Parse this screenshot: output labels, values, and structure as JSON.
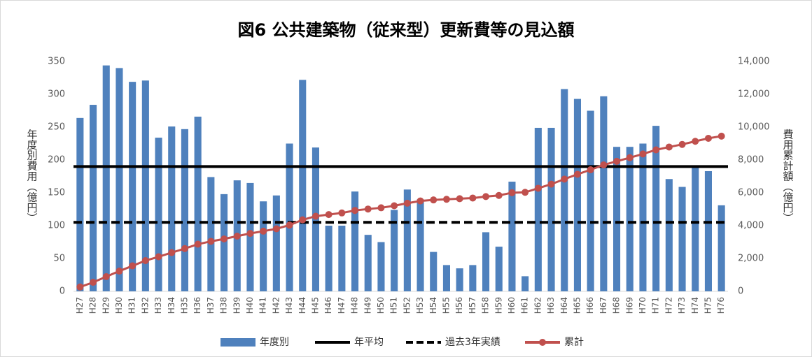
{
  "chart_data": {
    "type": "bar-line",
    "title": "図6 公共建築物（従来型）更新費等の見込額",
    "y_label": "年度別費用（億円）",
    "y2_label": "費用累計額（億円）",
    "categories": [
      "H27",
      "H28",
      "H29",
      "H30",
      "H31",
      "H32",
      "H33",
      "H34",
      "H35",
      "H36",
      "H37",
      "H38",
      "H39",
      "H40",
      "H41",
      "H42",
      "H43",
      "H44",
      "H45",
      "H46",
      "H47",
      "H48",
      "H49",
      "H50",
      "H51",
      "H52",
      "H53",
      "H54",
      "H55",
      "H56",
      "H57",
      "H58",
      "H59",
      "H60",
      "H61",
      "H62",
      "H63",
      "H64",
      "H65",
      "H66",
      "H67",
      "H68",
      "H69",
      "H70",
      "H71",
      "H72",
      "H73",
      "H74",
      "H75",
      "H76"
    ],
    "series": [
      {
        "name": "年度別",
        "kind": "bar",
        "color": "#4f81bd",
        "values": [
          264,
          284,
          344,
          340,
          319,
          321,
          234,
          251,
          247,
          266,
          174,
          148,
          169,
          165,
          137,
          146,
          225,
          322,
          219,
          100,
          100,
          152,
          86,
          75,
          124,
          155,
          140,
          60,
          40,
          35,
          40,
          90,
          68,
          167,
          23,
          249,
          249,
          308,
          293,
          275,
          297,
          220,
          220,
          225,
          252,
          171,
          159,
          190,
          183,
          131
        ]
      },
      {
        "name": "年平均",
        "kind": "hline",
        "color": "#000000",
        "dashed": false,
        "value": 190
      },
      {
        "name": "過去3年実績",
        "kind": "hline",
        "color": "#000000",
        "dashed": true,
        "value": 105
      },
      {
        "name": "累計",
        "kind": "line",
        "axis": "y2",
        "color": "#c0504d",
        "values": [
          264,
          548,
          892,
          1232,
          1551,
          1872,
          2106,
          2357,
          2604,
          2870,
          3044,
          3192,
          3361,
          3526,
          3663,
          3809,
          4034,
          4356,
          4575,
          4675,
          4775,
          4927,
          5013,
          5088,
          5212,
          5367,
          5507,
          5567,
          5607,
          5642,
          5682,
          5772,
          5840,
          6007,
          6030,
          6279,
          6528,
          6836,
          7129,
          7404,
          7701,
          7921,
          8141,
          8366,
          8618,
          8789,
          8948,
          9138,
          9321,
          9452
        ]
      }
    ],
    "ylim": [
      0,
      350
    ],
    "yticks": [
      0,
      50,
      100,
      150,
      200,
      250,
      300,
      350
    ],
    "y2lim": [
      0,
      14000
    ],
    "y2ticks": [
      0,
      {
        "value": 2000,
        "label": "2,000"
      },
      {
        "value": 4000,
        "label": "4,000"
      },
      {
        "value": 6000,
        "label": "6,000"
      },
      {
        "value": 8000,
        "label": "8,000"
      },
      {
        "value": 10000,
        "label": "10,000"
      },
      {
        "value": 12000,
        "label": "12,000"
      },
      {
        "value": 14000,
        "label": "14,000"
      }
    ],
    "legend": "bottom",
    "grid": false
  }
}
